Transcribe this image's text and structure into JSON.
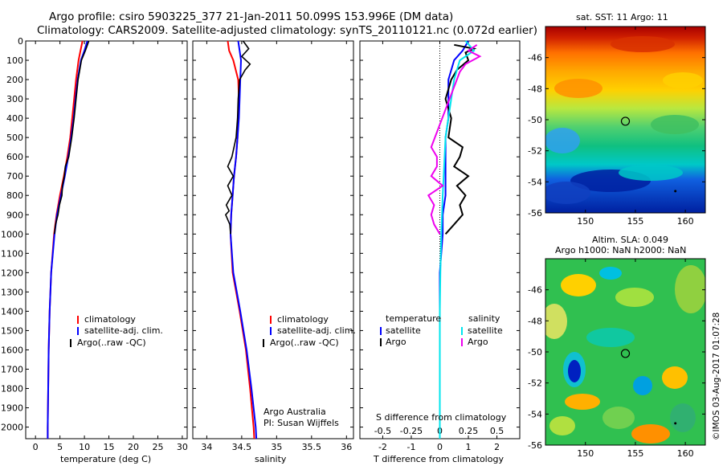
{
  "header": {
    "line1": "Argo profile: csiro 5903225_377 21-Jan-2011 50.099S 153.996E (DM data)",
    "line2": "Climatology: CARS2009. Satellite-adjusted climatology: synTS_20110121.nc (0.072d earlier)"
  },
  "colors": {
    "climatology": "#ff0000",
    "satellite": "#0000ff",
    "argo": "#000000",
    "sat_salinity": "#00e5ee",
    "argo_salinity": "#ee00ee"
  },
  "panels": {
    "temperature": {
      "xlabel": "temperature (deg C)",
      "legend": [
        "climatology",
        "satellite-adj. clim.",
        "Argo(..raw -QC)"
      ]
    },
    "salinity": {
      "xlabel": "salinity",
      "legend": [
        "climatology",
        "satellite-adj. clim.",
        "Argo(..raw -QC)"
      ],
      "credit1": "Argo Australia",
      "credit2": "PI: Susan Wijffels"
    },
    "difference": {
      "xlabel": "T difference from climatology",
      "top_label": "S difference from climatology",
      "legend_temp_title": "temperature",
      "legend_sal_title": "salinity",
      "legend_temp": [
        "satellite",
        "Argo"
      ],
      "legend_sal": [
        "satellite",
        "Argo"
      ]
    },
    "sst_map": {
      "title": "sat. SST: 11 Argo: 11"
    },
    "sla_map": {
      "title1": "Altim. SLA: 0.049",
      "title2": "Argo h1000: NaN h2000: NaN"
    },
    "stamp": "©IMOS 03-Aug-2017 01:07:28"
  },
  "chart_data": [
    {
      "type": "line",
      "title": "",
      "xlabel": "temperature (deg C)",
      "ylabel": "",
      "xlim": [
        -2,
        31
      ],
      "ylim": [
        2060,
        0
      ],
      "xticks": [
        0,
        5,
        10,
        15,
        20,
        25,
        30
      ],
      "yticks": [
        0,
        100,
        200,
        300,
        400,
        500,
        600,
        700,
        800,
        900,
        1000,
        1100,
        1200,
        1300,
        1400,
        1500,
        1600,
        1700,
        1800,
        1900,
        2000
      ],
      "series": [
        {
          "name": "climatology",
          "depth": [
            0,
            50,
            100,
            200,
            300,
            400,
            500,
            600,
            700,
            800,
            900,
            1000,
            1200,
            1400,
            1600,
            1800,
            2000,
            2060
          ],
          "values": [
            9.6,
            9.2,
            8.8,
            8.3,
            7.9,
            7.5,
            7.1,
            6.5,
            5.8,
            5.0,
            4.3,
            3.8,
            3.2,
            2.9,
            2.7,
            2.6,
            2.5,
            2.5
          ]
        },
        {
          "name": "satellite-adj. clim.",
          "depth": [
            0,
            50,
            100,
            200,
            300,
            400,
            500,
            600,
            700,
            800,
            900,
            1000,
            1200,
            1400,
            1600,
            1800,
            2000,
            2060
          ],
          "values": [
            10.6,
            10.0,
            9.3,
            8.6,
            8.2,
            7.8,
            7.3,
            6.7,
            6.0,
            5.2,
            4.4,
            3.9,
            3.2,
            2.9,
            2.7,
            2.6,
            2.5,
            2.5
          ]
        },
        {
          "name": "Argo(..raw -QC)",
          "depth": [
            0,
            50,
            100,
            200,
            300,
            400,
            500,
            600,
            650,
            700,
            750,
            800,
            850,
            900,
            950,
            1000
          ],
          "values": [
            10.9,
            10.2,
            9.4,
            8.7,
            8.3,
            7.9,
            7.4,
            6.8,
            6.1,
            5.9,
            5.5,
            5.4,
            4.9,
            4.6,
            4.1,
            3.9
          ]
        }
      ]
    },
    {
      "type": "line",
      "title": "",
      "xlabel": "salinity",
      "ylabel": "",
      "xlim": [
        33.8,
        36.1
      ],
      "ylim": [
        2060,
        0
      ],
      "xticks": [
        34,
        34.5,
        35,
        35.5,
        36
      ],
      "series": [
        {
          "name": "climatology",
          "depth": [
            0,
            50,
            100,
            200,
            300,
            400,
            500,
            600,
            700,
            800,
            900,
            1000,
            1200,
            1400,
            1600,
            1800,
            2000,
            2060
          ],
          "values": [
            34.3,
            34.32,
            34.38,
            34.45,
            34.46,
            34.45,
            34.44,
            34.42,
            34.39,
            34.37,
            34.35,
            34.34,
            34.37,
            34.47,
            34.56,
            34.62,
            34.67,
            34.68
          ]
        },
        {
          "name": "satellite-adj. clim.",
          "depth": [
            0,
            50,
            100,
            200,
            300,
            400,
            500,
            600,
            700,
            800,
            900,
            1000,
            1200,
            1400,
            1600,
            1800,
            2000,
            2060
          ],
          "values": [
            34.45,
            34.47,
            34.49,
            34.48,
            34.47,
            34.46,
            34.44,
            34.42,
            34.39,
            34.37,
            34.35,
            34.34,
            34.38,
            34.48,
            34.57,
            34.64,
            34.7,
            34.71
          ]
        },
        {
          "name": "Argo(..raw -QC)",
          "depth": [
            0,
            40,
            80,
            120,
            150,
            200,
            300,
            400,
            500,
            600,
            650,
            700,
            750,
            800,
            850,
            880,
            900,
            950,
            1000
          ],
          "values": [
            34.52,
            34.6,
            34.5,
            34.62,
            34.55,
            34.47,
            34.45,
            34.44,
            34.42,
            34.36,
            34.3,
            34.38,
            34.3,
            34.36,
            34.28,
            34.32,
            34.27,
            34.33,
            34.34
          ]
        }
      ]
    },
    {
      "type": "line",
      "title": "",
      "xlabel": "T difference from climatology",
      "xlabel_top": "S difference from climatology",
      "xlim": [
        -2.8,
        2.8
      ],
      "ylim": [
        2060,
        0
      ],
      "xticks": [
        -2,
        -1,
        0,
        1,
        2
      ],
      "xticks_s": [
        -0.5,
        -0.25,
        0,
        0.25,
        0.5
      ],
      "series": [
        {
          "name": "temperature satellite",
          "depth": [
            0,
            50,
            100,
            200,
            300,
            400,
            500,
            600,
            700,
            800,
            900,
            1000,
            1200,
            1400,
            1600,
            2060
          ],
          "values": [
            1.0,
            0.8,
            0.5,
            0.3,
            0.3,
            0.3,
            0.2,
            0.2,
            0.2,
            0.2,
            0.1,
            0.1,
            0,
            0,
            0,
            0
          ]
        },
        {
          "name": "temperature Argo",
          "depth": [
            20,
            40,
            60,
            100,
            150,
            200,
            250,
            300,
            400,
            500,
            550,
            600,
            650,
            700,
            750,
            800,
            850,
            900,
            950,
            1000
          ],
          "values": [
            0.5,
            1.2,
            0.9,
            1.0,
            0.6,
            0.4,
            0.3,
            0.2,
            0.4,
            0.3,
            0.8,
            0.7,
            0.5,
            1.0,
            0.6,
            0.9,
            0.7,
            0.8,
            0.5,
            0.2
          ]
        },
        {
          "name": "salinity satellite",
          "depth": [
            0,
            50,
            100,
            200,
            300,
            500,
            800,
            1000,
            1200,
            1400,
            2060
          ],
          "values": [
            0.9,
            1.2,
            0.7,
            0.5,
            0.4,
            0.2,
            0.1,
            0.05,
            0.02,
            0,
            0
          ]
        },
        {
          "name": "salinity Argo",
          "depth": [
            20,
            50,
            80,
            120,
            160,
            550,
            600,
            650,
            700,
            750,
            800,
            850,
            900,
            950,
            1000
          ],
          "values": [
            1.3,
            1.0,
            1.4,
            0.9,
            0.7,
            -0.3,
            -0.1,
            -0.1,
            -0.3,
            0.1,
            -0.4,
            -0.2,
            -0.3,
            -0.2,
            0
          ]
        }
      ]
    },
    {
      "type": "heatmap",
      "title": "sat. SST: 11 Argo: 11",
      "xlim": [
        146,
        162
      ],
      "ylim": [
        -56,
        -44
      ],
      "xticks": [
        150,
        155,
        160
      ],
      "yticks": [
        -46,
        -48,
        -50,
        -52,
        -54,
        -56
      ],
      "marker": {
        "x": 154,
        "y": -50.1
      }
    },
    {
      "type": "heatmap",
      "title": "Altim. SLA: 0.049",
      "subtitle": "Argo h1000: NaN h2000: NaN",
      "xlim": [
        146,
        162
      ],
      "ylim": [
        -56,
        -44
      ],
      "xticks": [
        150,
        155,
        160
      ],
      "yticks": [
        -46,
        -48,
        -50,
        -52,
        -54,
        -56
      ],
      "marker": {
        "x": 154,
        "y": -50.1
      }
    }
  ]
}
